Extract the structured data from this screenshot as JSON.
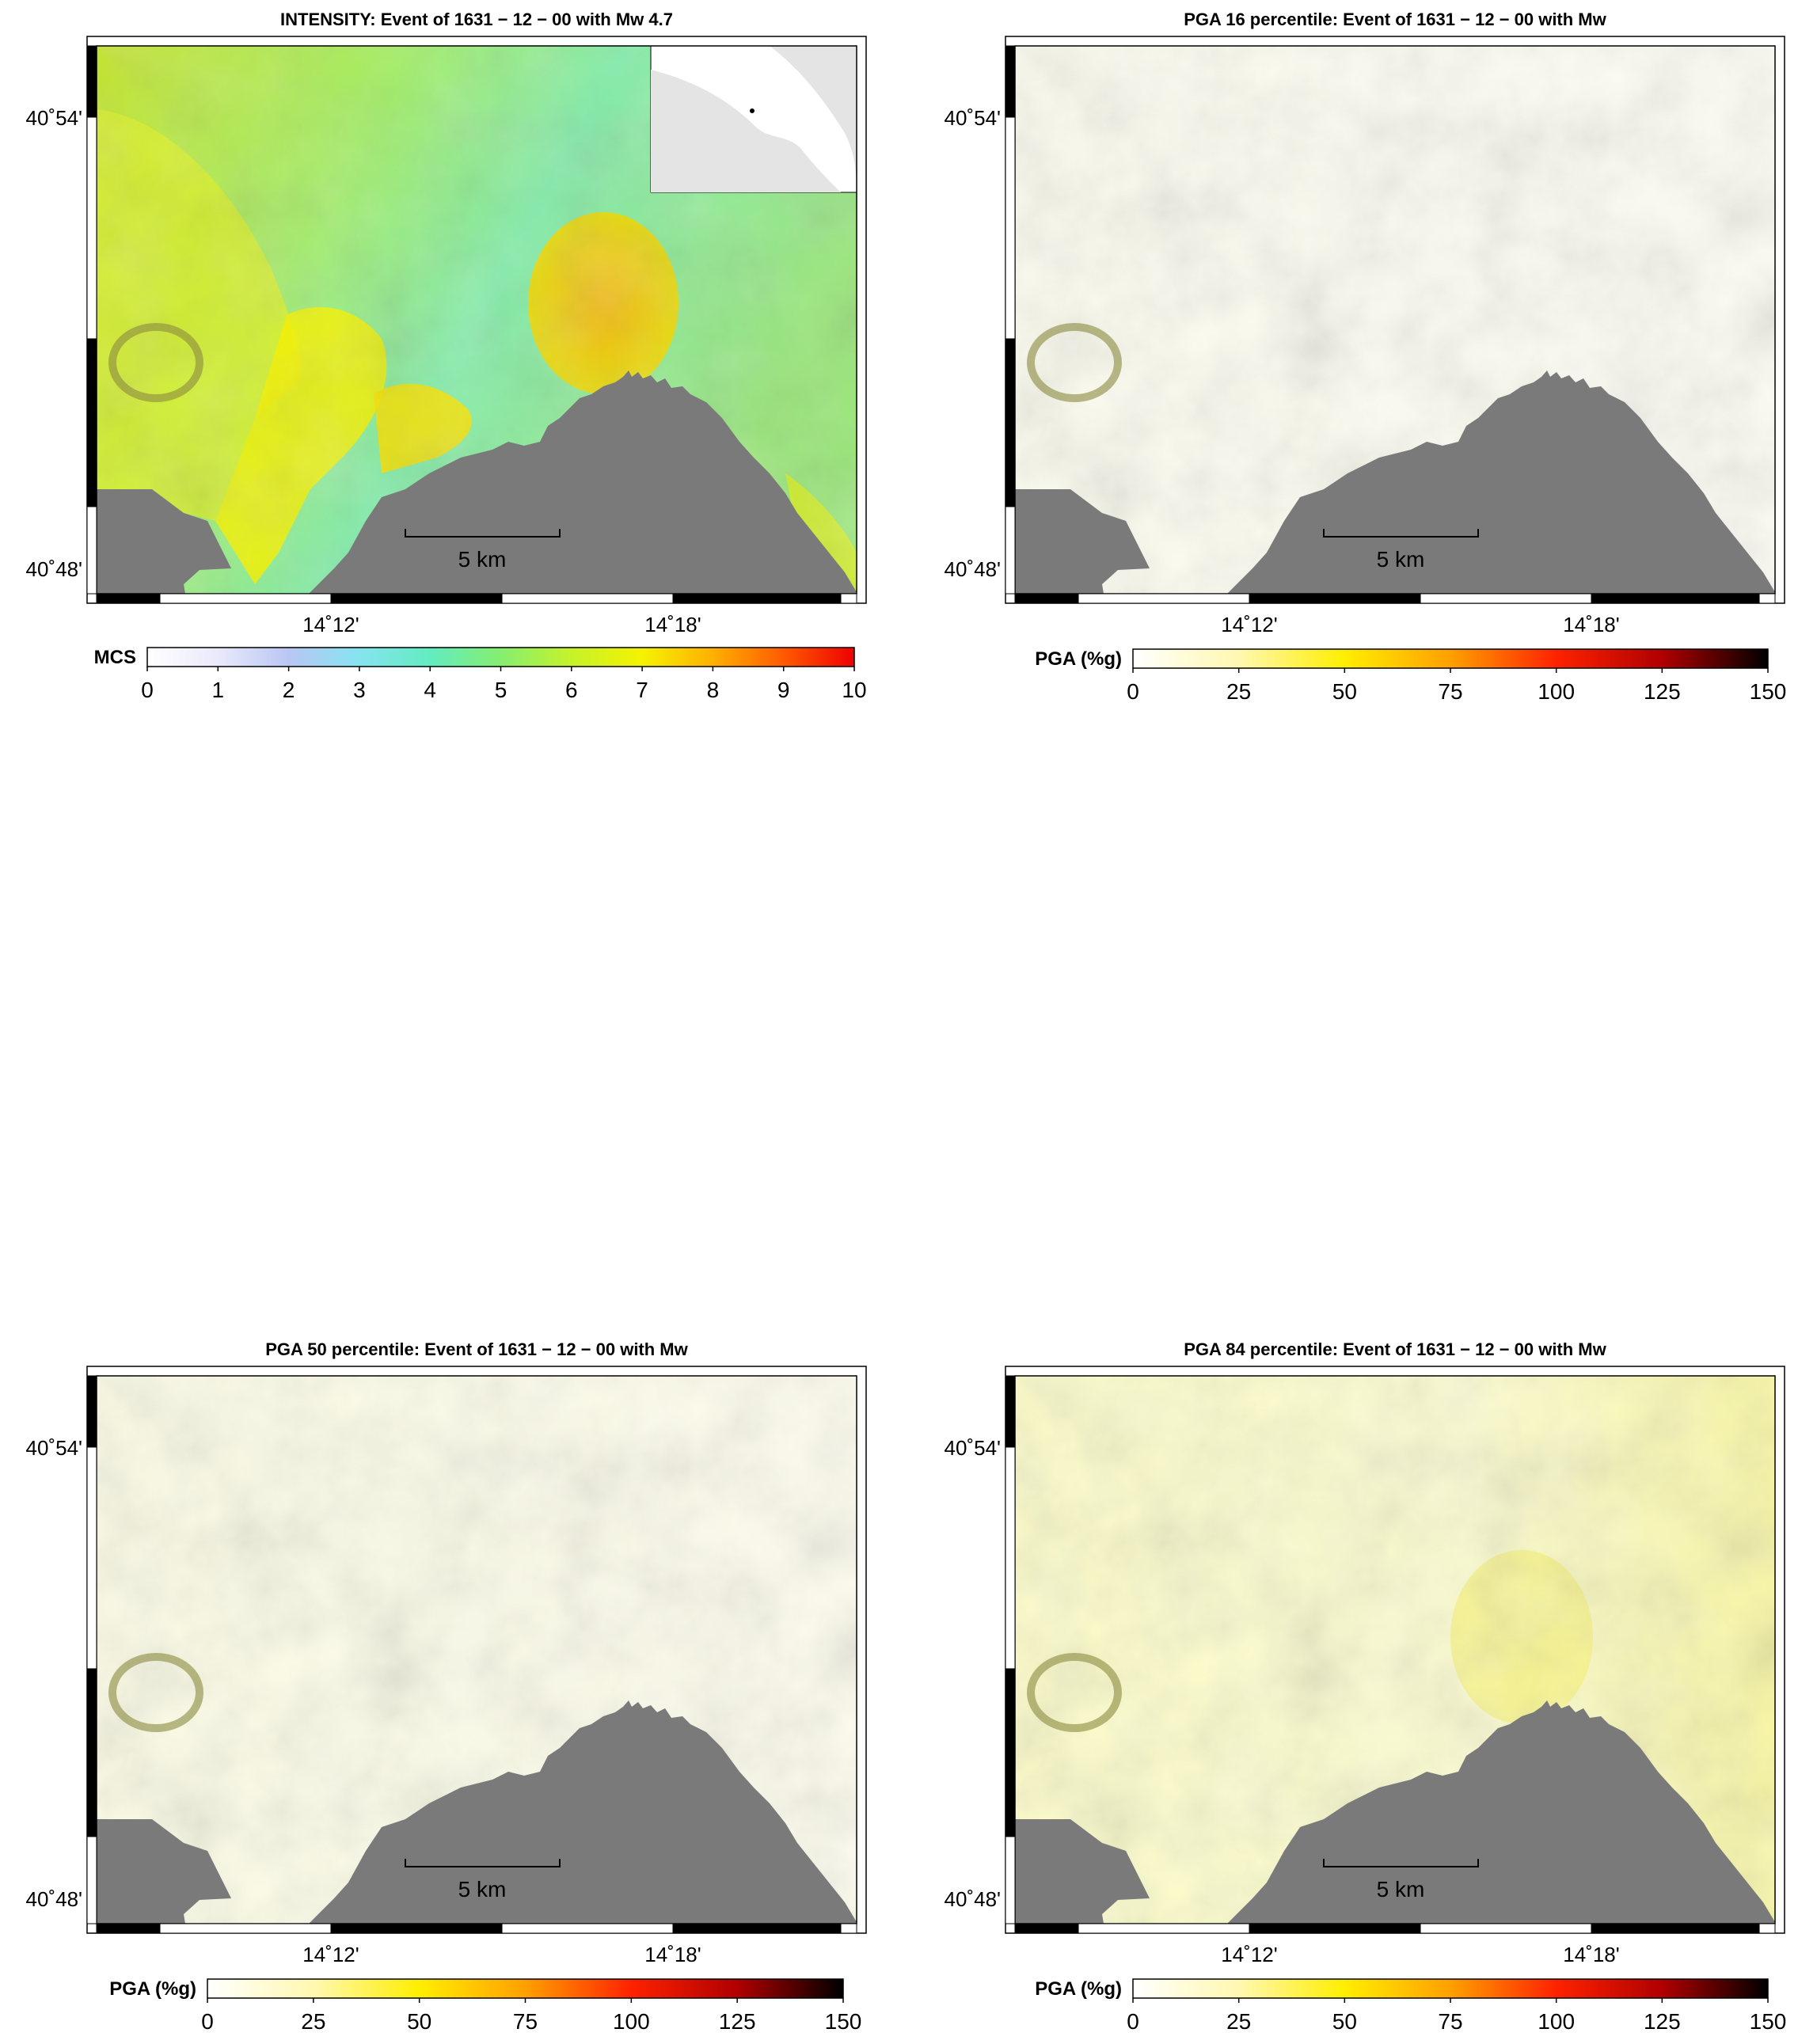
{
  "colors": {
    "sea": "#7a7a7a",
    "frame": "#000000",
    "inset_land": "#e4e4e4"
  },
  "panels": [
    {
      "id": "intensity",
      "title": "INTENSITY: Event of 1631 − 12 − 00 with Mw 4.7",
      "lat_labels": [
        "40˚54'",
        "40˚48'"
      ],
      "lon_labels": [
        "14˚12'",
        "14˚18'"
      ],
      "scale_label": "5 km",
      "colorbar_label": "MCS",
      "colorbar_ticks": [
        "0",
        "1",
        "2",
        "3",
        "4",
        "5",
        "6",
        "7",
        "8",
        "9",
        "10"
      ],
      "colorbar_stops": [
        "#ffffff",
        "#e9e9fb",
        "#b9c6f3",
        "#86e4f0",
        "#62ecc0",
        "#86ee70",
        "#c6f22a",
        "#f5f200",
        "#ffb000",
        "#ff5a00",
        "#ee0000"
      ],
      "has_inset": true
    },
    {
      "id": "pga16",
      "title": "PGA 16 percentile: Event of 1631 − 12 − 00 with Mw",
      "lat_labels": [
        "40˚54'",
        "40˚48'"
      ],
      "lon_labels": [
        "14˚12'",
        "14˚18'"
      ],
      "scale_label": "5 km",
      "colorbar_label": "PGA (%g)",
      "colorbar_ticks": [
        "0",
        "25",
        "50",
        "75",
        "100",
        "125",
        "150"
      ],
      "colorbar_stops": [
        "#ffffff",
        "#fff8b0",
        "#ffee00",
        "#ffa000",
        "#ff2200",
        "#b00000",
        "#000000"
      ],
      "has_inset": false
    },
    {
      "id": "pga50",
      "title": "PGA 50 percentile: Event of 1631 − 12 − 00 with Mw",
      "lat_labels": [
        "40˚54'",
        "40˚48'"
      ],
      "lon_labels": [
        "14˚12'",
        "14˚18'"
      ],
      "scale_label": "5 km",
      "colorbar_label": "PGA (%g)",
      "colorbar_ticks": [
        "0",
        "25",
        "50",
        "75",
        "100",
        "125",
        "150"
      ],
      "colorbar_stops": [
        "#ffffff",
        "#fff8b0",
        "#ffee00",
        "#ffa000",
        "#ff2200",
        "#b00000",
        "#000000"
      ],
      "has_inset": false
    },
    {
      "id": "pga84",
      "title": "PGA 84 percentile: Event of 1631 − 12 − 00 with Mw",
      "lat_labels": [
        "40˚54'",
        "40˚48'"
      ],
      "lon_labels": [
        "14˚12'",
        "14˚18'"
      ],
      "scale_label": "5 km",
      "colorbar_label": "PGA (%g)",
      "colorbar_ticks": [
        "0",
        "25",
        "50",
        "75",
        "100",
        "125",
        "150"
      ],
      "colorbar_stops": [
        "#ffffff",
        "#fff8b0",
        "#ffee00",
        "#ffa000",
        "#ff2200",
        "#b00000",
        "#000000"
      ],
      "has_inset": false
    }
  ]
}
